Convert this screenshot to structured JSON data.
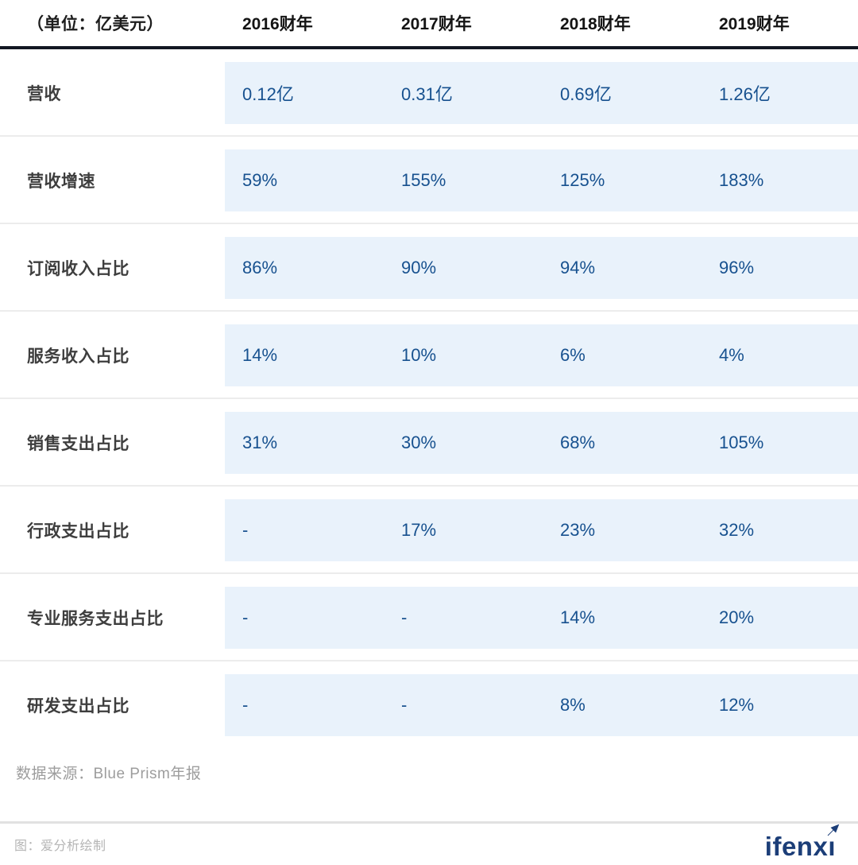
{
  "table": {
    "unit_label": "（单位：亿美元）",
    "columns": [
      "2016财年",
      "2017财年",
      "2018财年",
      "2019财年"
    ],
    "rows": [
      {
        "label": "营收",
        "values": [
          "0.12亿",
          "0.31亿",
          "0.69亿",
          "1.26亿"
        ]
      },
      {
        "label": "营收增速",
        "values": [
          "59%",
          "155%",
          "125%",
          "183%"
        ]
      },
      {
        "label": "订阅收入占比",
        "values": [
          "86%",
          "90%",
          "94%",
          "96%"
        ]
      },
      {
        "label": "服务收入占比",
        "values": [
          "14%",
          "10%",
          "6%",
          "4%"
        ]
      },
      {
        "label": "销售支出占比",
        "values": [
          "31%",
          "30%",
          "68%",
          "105%"
        ]
      },
      {
        "label": "行政支出占比",
        "values": [
          "-",
          "17%",
          "23%",
          "32%"
        ]
      },
      {
        "label": "专业服务支出占比",
        "values": [
          "-",
          "-",
          "14%",
          "20%"
        ]
      },
      {
        "label": "研发支出占比",
        "values": [
          "-",
          "-",
          "8%",
          "12%"
        ]
      }
    ]
  },
  "source_note": "数据来源：Blue Prism年报",
  "footer": {
    "credit": "图：爱分析绘制",
    "logo_text": "ifenxi",
    "logo_head": "ifenx",
    "logo_tail": "ı"
  },
  "colors": {
    "panel_bg": "#e9f2fb",
    "value_text": "#17518f",
    "header_text": "#141414",
    "row_label_text": "#3e3e3e",
    "header_rule": "#131722",
    "row_divider": "#ececec",
    "source_text": "#9d9d9d",
    "bottom_divider": "#e1e1e1",
    "credit_text": "#b5b5b5",
    "logo_navy": "#1c3e78"
  },
  "chart_data": {
    "type": "table",
    "title": "Blue Prism 财年财务数据（单位：亿美元）",
    "categories": [
      "2016财年",
      "2017财年",
      "2018财年",
      "2019财年"
    ],
    "series": [
      {
        "name": "营收",
        "values": [
          "0.12亿",
          "0.31亿",
          "0.69亿",
          "1.26亿"
        ]
      },
      {
        "name": "营收增速",
        "values": [
          "59%",
          "155%",
          "125%",
          "183%"
        ]
      },
      {
        "name": "订阅收入占比",
        "values": [
          "86%",
          "90%",
          "94%",
          "96%"
        ]
      },
      {
        "name": "服务收入占比",
        "values": [
          "14%",
          "10%",
          "6%",
          "4%"
        ]
      },
      {
        "name": "销售支出占比",
        "values": [
          "31%",
          "30%",
          "68%",
          "105%"
        ]
      },
      {
        "name": "行政支出占比",
        "values": [
          null,
          "17%",
          "23%",
          "32%"
        ]
      },
      {
        "name": "专业服务支出占比",
        "values": [
          null,
          null,
          "14%",
          "20%"
        ]
      },
      {
        "name": "研发支出占比",
        "values": [
          null,
          null,
          "8%",
          "12%"
        ]
      }
    ],
    "source": "数据来源：Blue Prism年报",
    "legend_position": "none",
    "grid": "row-dividers"
  }
}
